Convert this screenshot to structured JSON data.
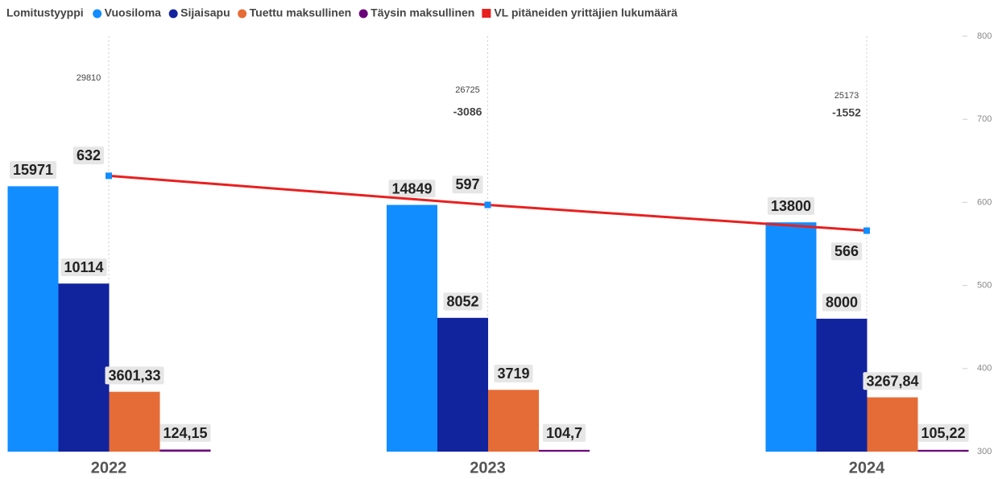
{
  "chart_data": {
    "type": "bar-line",
    "legend_title": "Lomitustyyppi",
    "categories": [
      "2022",
      "2023",
      "2024"
    ],
    "series": [
      {
        "name": "Vuosiloma",
        "color": "#118dff",
        "values": [
          15971,
          14849,
          13800
        ],
        "value_labels": [
          "15971",
          "14849",
          "13800"
        ]
      },
      {
        "name": "Sijaisapu",
        "color": "#12239e",
        "values": [
          10114,
          8052,
          8000
        ],
        "value_labels": [
          "10114",
          "8052",
          "8000"
        ]
      },
      {
        "name": "Tuettu maksullinen",
        "color": "#e66c37",
        "values": [
          3601.33,
          3719,
          3267.84
        ],
        "value_labels": [
          "3601,33",
          "3719",
          "3267,84"
        ]
      },
      {
        "name": "Täysin maksullinen",
        "color": "#6b007b",
        "values": [
          124.15,
          104.7,
          105.22
        ],
        "value_labels": [
          "124,15",
          "104,7",
          "105,22"
        ]
      },
      {
        "name": "VL pitäneiden yrittäjien lukumäärä",
        "type": "line",
        "axis": "y2",
        "color": "#e8201f",
        "marker_color": "#118dff",
        "values": [
          632,
          597,
          566
        ]
      }
    ],
    "totals": [
      29810,
      26725,
      25173
    ],
    "changes": [
      null,
      -3086,
      -1552
    ],
    "ylim": [
      0,
      25000
    ],
    "y2lim": [
      300,
      800
    ],
    "y2ticks": [
      300,
      400,
      500,
      600,
      700,
      800
    ]
  }
}
